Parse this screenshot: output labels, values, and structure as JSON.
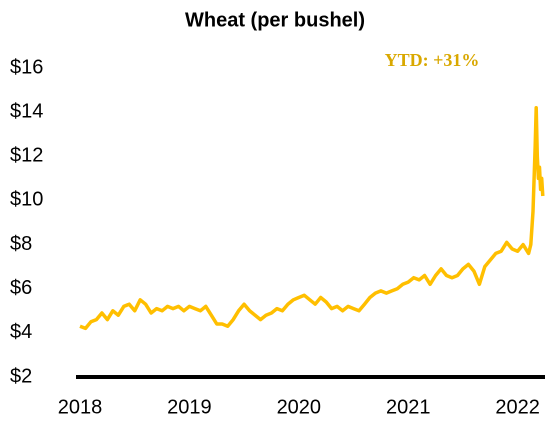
{
  "chart_data": {
    "type": "line",
    "title": "Wheat (per bushel)",
    "annotation": "YTD: +31%",
    "annotation_color": "#d9a800",
    "color": "#ffbf00",
    "xlim": [
      2018,
      2022.25
    ],
    "xticks": [
      2018,
      2019,
      2020,
      2021,
      2022
    ],
    "ylim": [
      2,
      16
    ],
    "yticks": [
      {
        "value": 2,
        "label": "$2"
      },
      {
        "value": 4,
        "label": "$4"
      },
      {
        "value": 6,
        "label": "$6"
      },
      {
        "value": 8,
        "label": "$8"
      },
      {
        "value": 10,
        "label": "$10"
      },
      {
        "value": 12,
        "label": "$12"
      },
      {
        "value": 14,
        "label": "$14"
      },
      {
        "value": 16,
        "label": "$16"
      }
    ],
    "grid": false,
    "series": [
      {
        "name": "Wheat",
        "x": [
          2018.0,
          2018.05,
          2018.1,
          2018.15,
          2018.2,
          2018.25,
          2018.3,
          2018.35,
          2018.4,
          2018.45,
          2018.5,
          2018.55,
          2018.6,
          2018.65,
          2018.7,
          2018.75,
          2018.8,
          2018.85,
          2018.9,
          2018.95,
          2019.0,
          2019.05,
          2019.1,
          2019.15,
          2019.2,
          2019.25,
          2019.3,
          2019.35,
          2019.4,
          2019.45,
          2019.5,
          2019.55,
          2019.6,
          2019.65,
          2019.7,
          2019.75,
          2019.8,
          2019.85,
          2019.9,
          2019.95,
          2020.0,
          2020.05,
          2020.1,
          2020.15,
          2020.2,
          2020.25,
          2020.3,
          2020.35,
          2020.4,
          2020.45,
          2020.5,
          2020.55,
          2020.6,
          2020.65,
          2020.7,
          2020.75,
          2020.8,
          2020.85,
          2020.9,
          2020.95,
          2021.0,
          2021.05,
          2021.1,
          2021.15,
          2021.2,
          2021.25,
          2021.3,
          2021.35,
          2021.4,
          2021.45,
          2021.5,
          2021.55,
          2021.6,
          2021.65,
          2021.7,
          2021.75,
          2021.8,
          2021.85,
          2021.9,
          2021.95,
          2022.0,
          2022.05,
          2022.1,
          2022.12,
          2022.14,
          2022.16,
          2022.17,
          2022.18,
          2022.19,
          2022.2,
          2022.21,
          2022.22,
          2022.23
        ],
        "values": [
          4.3,
          4.2,
          4.5,
          4.6,
          4.9,
          4.6,
          5.0,
          4.8,
          5.2,
          5.3,
          5.0,
          5.5,
          5.3,
          4.9,
          5.1,
          5.0,
          5.2,
          5.1,
          5.2,
          5.0,
          5.2,
          5.1,
          5.0,
          5.2,
          4.8,
          4.4,
          4.4,
          4.3,
          4.6,
          5.0,
          5.3,
          5.0,
          4.8,
          4.6,
          4.8,
          4.9,
          5.1,
          5.0,
          5.3,
          5.5,
          5.6,
          5.7,
          5.5,
          5.3,
          5.6,
          5.4,
          5.1,
          5.2,
          5.0,
          5.2,
          5.1,
          5.0,
          5.3,
          5.6,
          5.8,
          5.9,
          5.8,
          5.9,
          6.0,
          6.2,
          6.3,
          6.5,
          6.4,
          6.6,
          6.2,
          6.6,
          6.9,
          6.6,
          6.5,
          6.6,
          6.9,
          7.1,
          6.8,
          6.2,
          7.0,
          7.3,
          7.6,
          7.7,
          8.1,
          7.8,
          7.7,
          8.0,
          7.6,
          8.0,
          9.5,
          12.5,
          14.2,
          12.0,
          11.0,
          11.5,
          10.5,
          11.0,
          10.2
        ]
      }
    ]
  }
}
